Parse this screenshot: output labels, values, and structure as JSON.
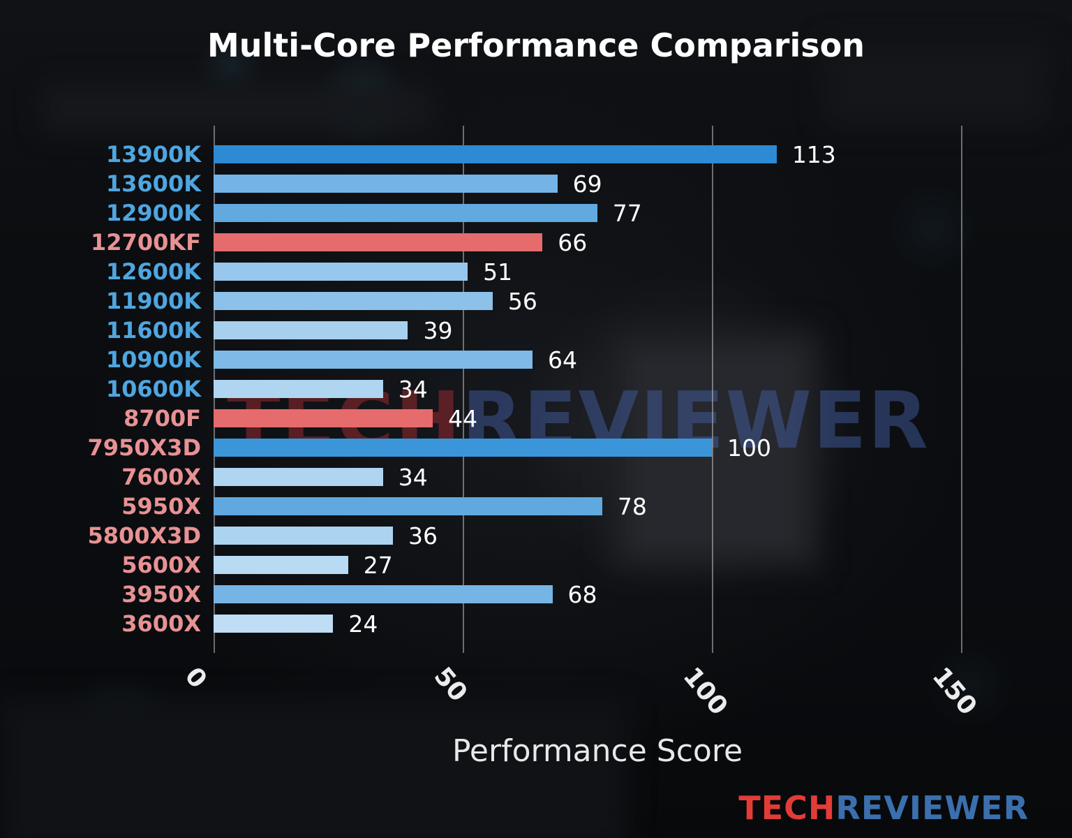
{
  "title": "Multi-Core Performance Comparison",
  "xlabel": "Performance Score",
  "watermark": {
    "part1": "TECH",
    "part2": "REVIEWER"
  },
  "logo": {
    "part1": "TECH",
    "part2": "REVIEWER"
  },
  "colors": {
    "highlight_bar": "#e56b6d",
    "intel_label": "#4fa6e0",
    "amd_label": "#e89294",
    "value_label": "#ffffff",
    "grid": "#bebebe"
  },
  "chart_data": {
    "type": "bar",
    "orientation": "horizontal",
    "title": "Multi-Core Performance Comparison",
    "xlabel": "Performance Score",
    "xlim": [
      0,
      160
    ],
    "xticks": [
      0,
      50,
      100,
      150
    ],
    "grid": true,
    "categories": [
      "13900K",
      "13600K",
      "12900K",
      "12700KF",
      "12600K",
      "11900K",
      "11600K",
      "10900K",
      "10600K",
      "8700F",
      "7950X3D",
      "7600X",
      "5950X",
      "5800X3D",
      "5600X",
      "3950X",
      "3600X"
    ],
    "values": [
      113,
      69,
      77,
      66,
      51,
      56,
      39,
      64,
      34,
      44,
      100,
      34,
      78,
      36,
      27,
      68,
      24
    ],
    "bar_colors": [
      "#2e8ad3",
      "#74b3e6",
      "#62a9e0",
      "#e56b6d",
      "#97c7ec",
      "#8dc1ea",
      "#a7d0ef",
      "#7fb9e7",
      "#b0d5f1",
      "#e56b6d",
      "#3b95d9",
      "#b0d5f1",
      "#60a8e0",
      "#acd3f0",
      "#b9daf3",
      "#76b4e6",
      "#bfddf4"
    ],
    "label_colors": [
      "#4fa6e0",
      "#4fa6e0",
      "#4fa6e0",
      "#e89294",
      "#4fa6e0",
      "#4fa6e0",
      "#4fa6e0",
      "#4fa6e0",
      "#4fa6e0",
      "#e89294",
      "#e89294",
      "#e89294",
      "#e89294",
      "#e89294",
      "#e89294",
      "#e89294",
      "#e89294"
    ],
    "highlighted_categories": [
      "12700KF",
      "8700F"
    ]
  }
}
